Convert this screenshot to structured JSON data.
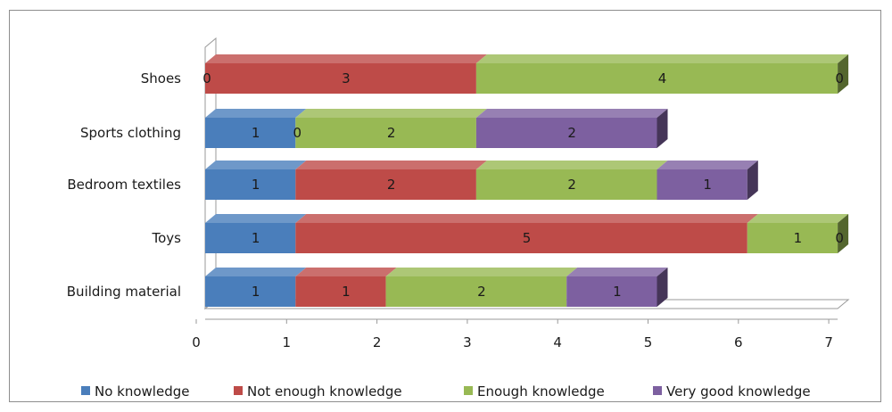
{
  "chart_data": {
    "type": "bar",
    "orientation": "horizontal",
    "stacked": true,
    "three_d": true,
    "categories": [
      "Building material",
      "Toys",
      "Bedroom textiles",
      "Sports clothing",
      "Shoes"
    ],
    "series": [
      {
        "name": "No knowledge",
        "values": [
          1,
          1,
          1,
          1,
          0
        ],
        "color": "#4a7ebb"
      },
      {
        "name": "Not enough knowledge",
        "values": [
          1,
          5,
          2,
          0,
          3
        ],
        "color": "#be4b48"
      },
      {
        "name": "Enough knowledge",
        "values": [
          2,
          1,
          2,
          2,
          4
        ],
        "color": "#98b954"
      },
      {
        "name": "Very good knowledge",
        "values": [
          1,
          0,
          1,
          2,
          0
        ],
        "color": "#7d60a0"
      }
    ],
    "xlim": [
      0,
      7
    ],
    "xticks": [
      "0",
      "1",
      "2",
      "3",
      "4",
      "5",
      "6",
      "7"
    ],
    "legend_position": "bottom",
    "grid": false,
    "title": "",
    "xlabel": "",
    "ylabel": ""
  }
}
